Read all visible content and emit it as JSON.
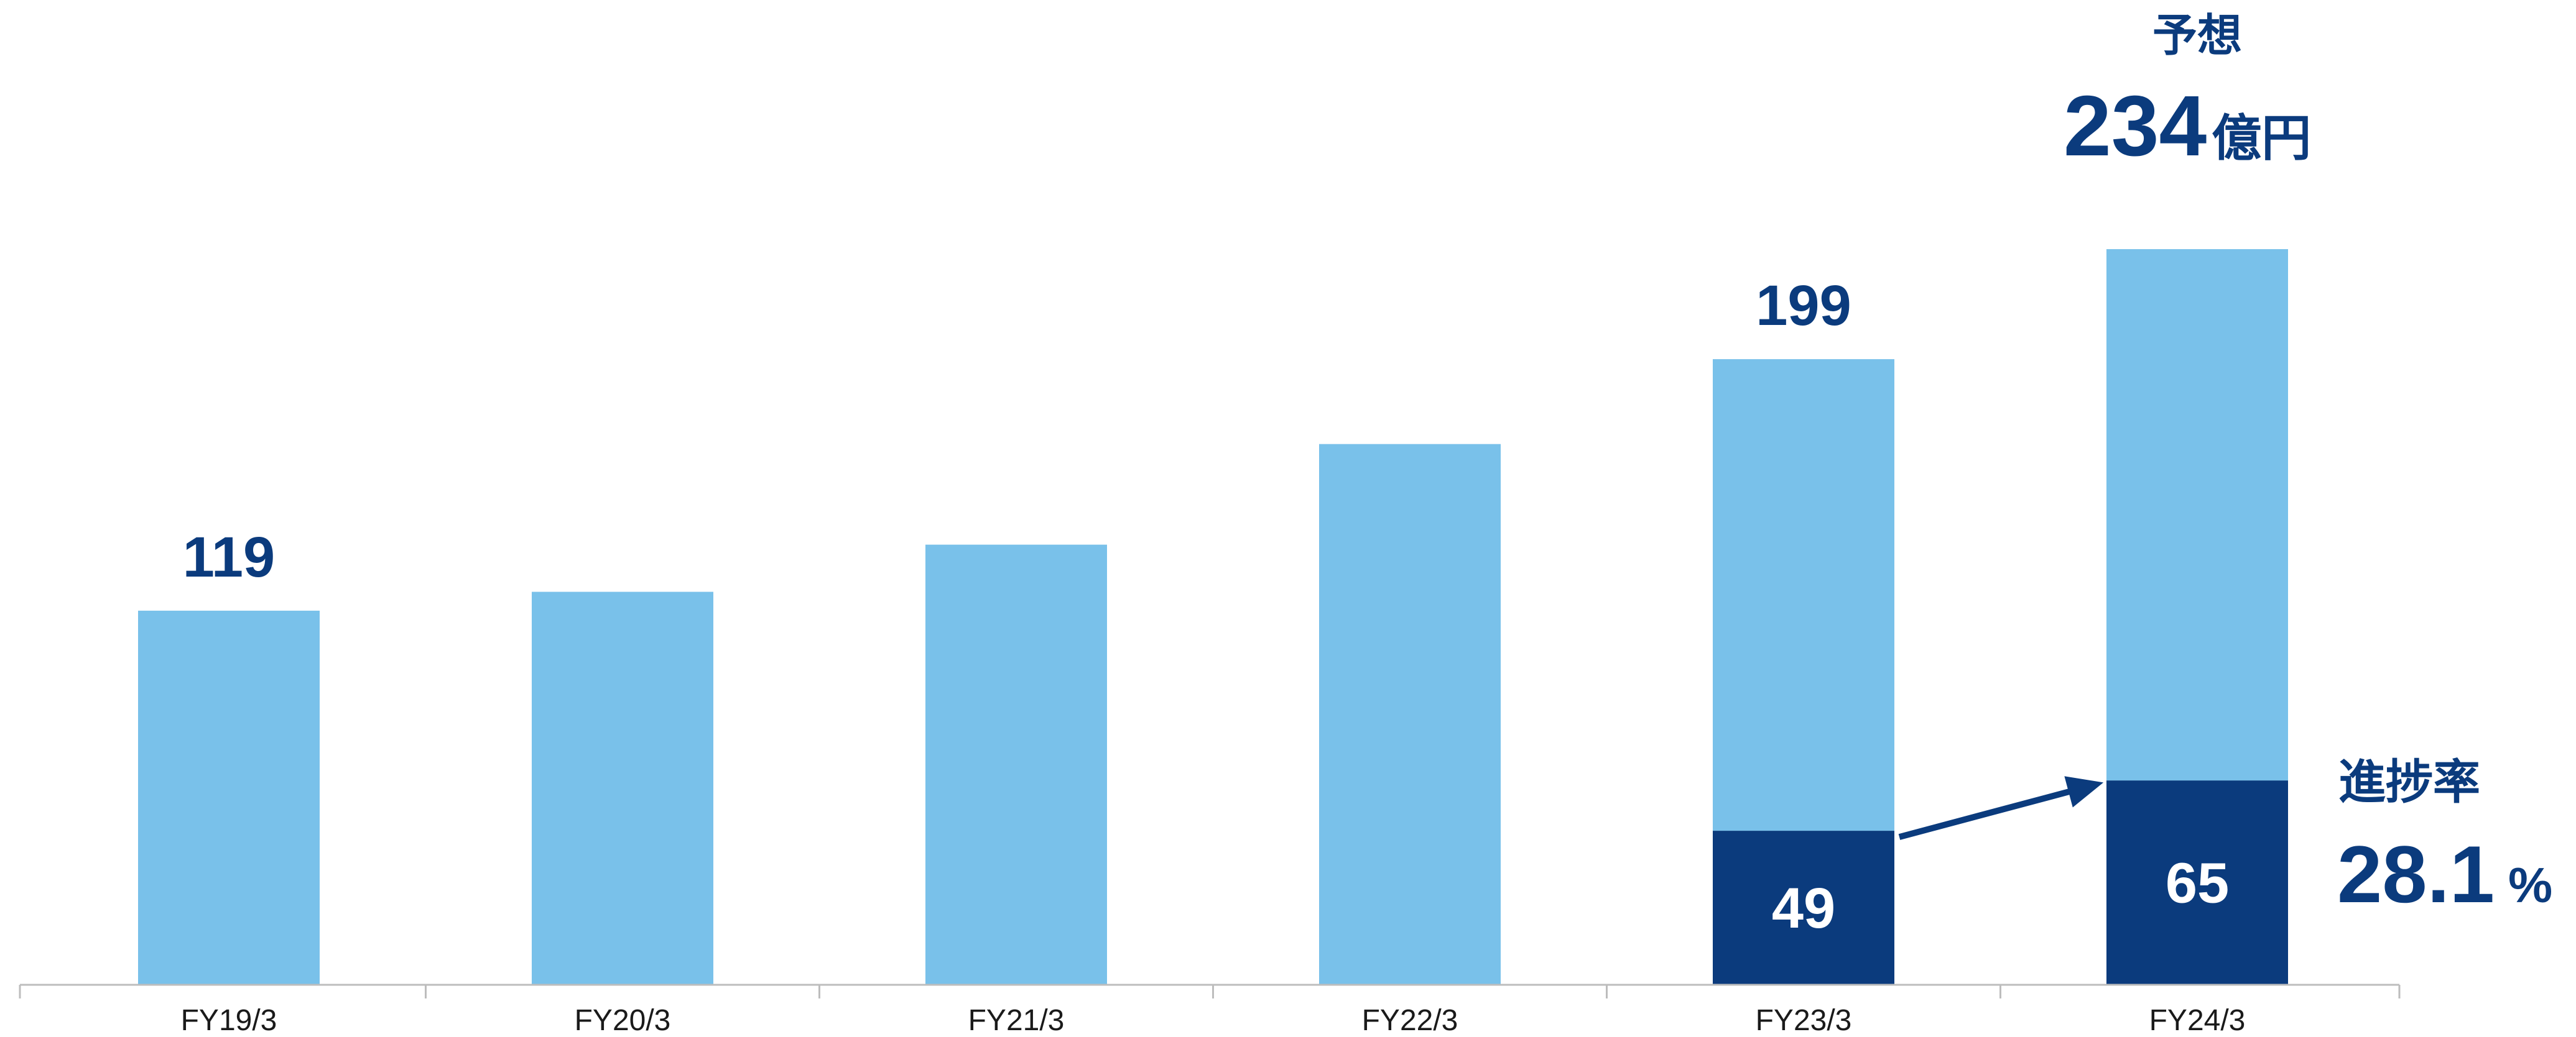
{
  "colors": {
    "bar_light": "#79C1EA",
    "bar_dark": "#0B3B7D",
    "label": "#0B3B7D",
    "axis": "#BDBDBD",
    "tick_text": "#1a1a1a"
  },
  "chart_data": {
    "type": "bar",
    "stacked": true,
    "categories": [
      "FY19/3",
      "FY20/3",
      "FY21/3",
      "FY22/3",
      "FY23/3",
      "FY24/3"
    ],
    "ylim": [
      0,
      250
    ],
    "grid": false,
    "legend": "none",
    "series": [
      {
        "values": [
          0,
          0,
          0,
          0,
          49,
          65
        ],
        "color": "#0B3B7D"
      },
      {
        "values": [
          119,
          125,
          140,
          172,
          150,
          169
        ],
        "color": "#79C1EA"
      }
    ],
    "totals": [
      119,
      125,
      140,
      172,
      199,
      234
    ],
    "top_labels": [
      {
        "category": "FY19/3",
        "text": "119"
      },
      {
        "category": "FY23/3",
        "text": "199"
      }
    ],
    "inbar_labels": [
      {
        "category": "FY23/3",
        "text": "49"
      },
      {
        "category": "FY24/3",
        "text": "65"
      }
    ],
    "forecast": {
      "category": "FY24/3",
      "heading": "予想",
      "value": "234",
      "unit": "億円"
    },
    "progress": {
      "heading": "進捗率",
      "value": "28.1",
      "unit": "%"
    }
  }
}
